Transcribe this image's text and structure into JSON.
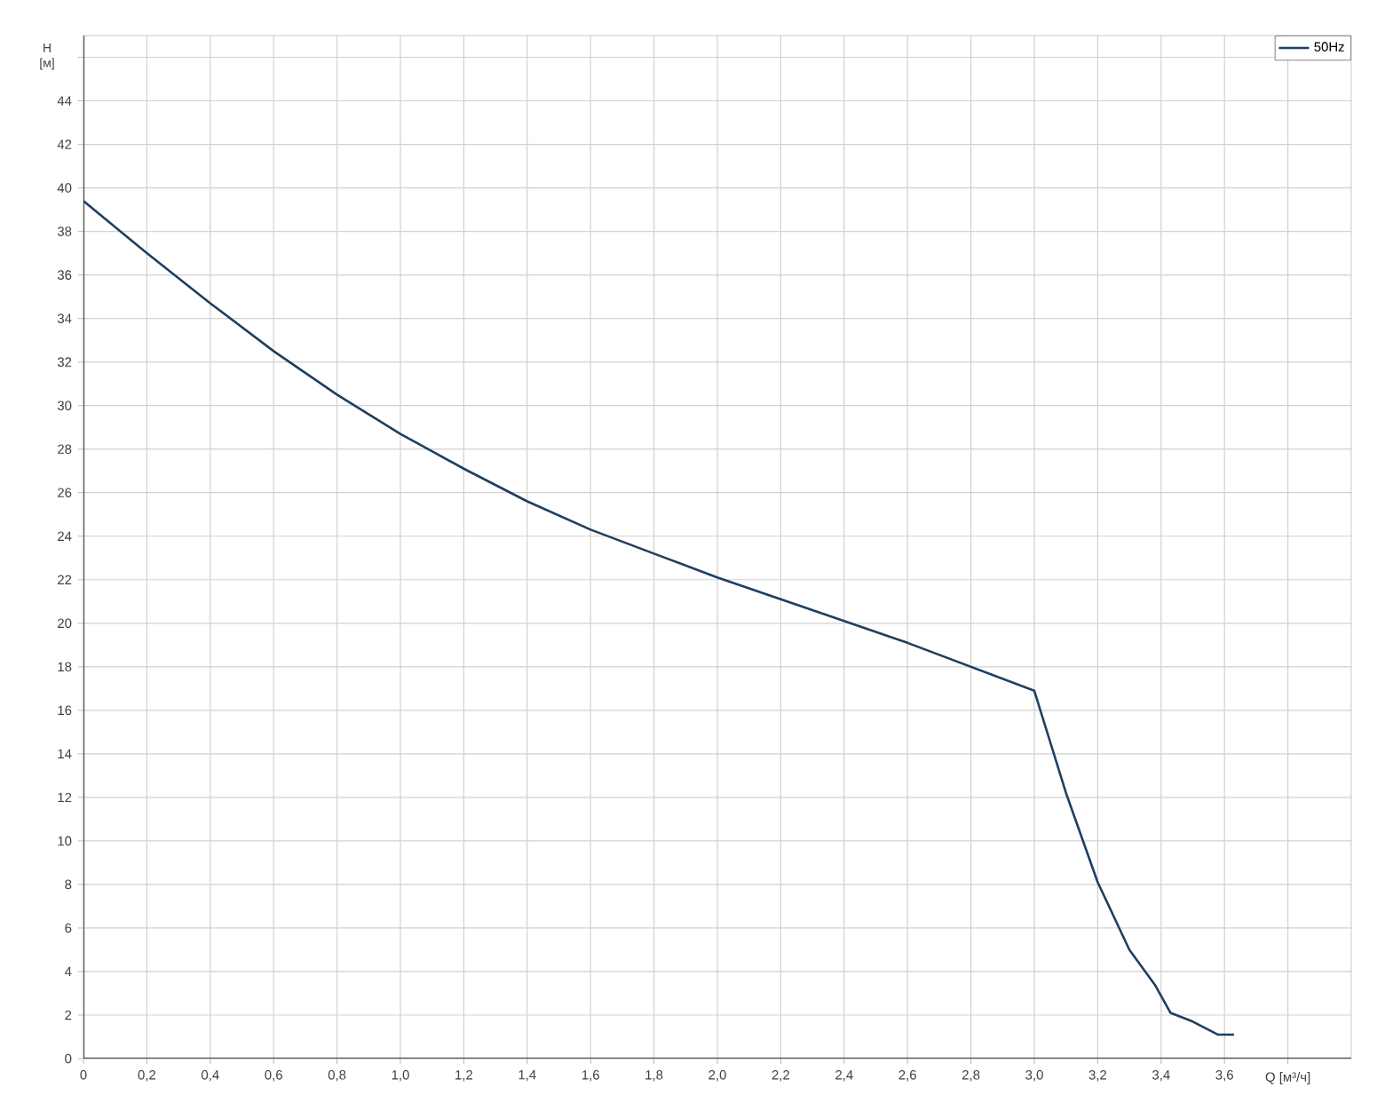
{
  "chart_data": {
    "type": "line",
    "xlabel": "Q [м³/ч]",
    "ylabel": "H [м]",
    "x": [
      0,
      0.2,
      0.4,
      0.6,
      0.8,
      1.0,
      1.2,
      1.4,
      1.6,
      1.8,
      2.0,
      2.2,
      2.4,
      2.6,
      2.8,
      3.0,
      3.1,
      3.2,
      3.3,
      3.38,
      3.43,
      3.5,
      3.58,
      3.63
    ],
    "series": [
      {
        "name": "50Hz",
        "color": "#1f3f5f",
        "values": [
          39.4,
          37.0,
          34.7,
          32.5,
          30.5,
          28.7,
          27.1,
          25.6,
          24.3,
          23.2,
          22.1,
          21.1,
          20.1,
          19.1,
          18.0,
          16.9,
          12.2,
          8.1,
          5.0,
          3.4,
          2.1,
          1.7,
          1.1,
          1.1
        ]
      }
    ],
    "xlim": [
      0,
      4.0
    ],
    "ylim": [
      0,
      47
    ],
    "xticks": [
      0,
      {
        "value": 0.2,
        "label": "0,2"
      },
      {
        "value": 0.4,
        "label": "0,4"
      },
      {
        "value": 0.6,
        "label": "0,6"
      },
      {
        "value": 0.8,
        "label": "0,8"
      },
      {
        "value": 1.0,
        "label": "1,0"
      },
      {
        "value": 1.2,
        "label": "1,2"
      },
      {
        "value": 1.4,
        "label": "1,4"
      },
      {
        "value": 1.6,
        "label": "1,6"
      },
      {
        "value": 1.8,
        "label": "1,8"
      },
      {
        "value": 2.0,
        "label": "2,0"
      },
      {
        "value": 2.2,
        "label": "2,2"
      },
      {
        "value": 2.4,
        "label": "2,4"
      },
      {
        "value": 2.6,
        "label": "2,6"
      },
      {
        "value": 2.8,
        "label": "2,8"
      },
      {
        "value": 3.0,
        "label": "3,0"
      },
      {
        "value": 3.2,
        "label": "3,2"
      },
      {
        "value": 3.4,
        "label": "3,4"
      },
      {
        "value": 3.6,
        "label": "3,6"
      },
      {
        "value": 3.8,
        "label": null
      }
    ],
    "yticks": [
      0,
      2,
      4,
      6,
      8,
      10,
      12,
      14,
      16,
      18,
      20,
      22,
      24,
      26,
      28,
      30,
      32,
      34,
      36,
      38,
      40,
      42,
      44,
      {
        "value": 46,
        "label": null
      }
    ],
    "grid": true,
    "legend": "top right",
    "marker": "none",
    "line_style": "solid"
  }
}
